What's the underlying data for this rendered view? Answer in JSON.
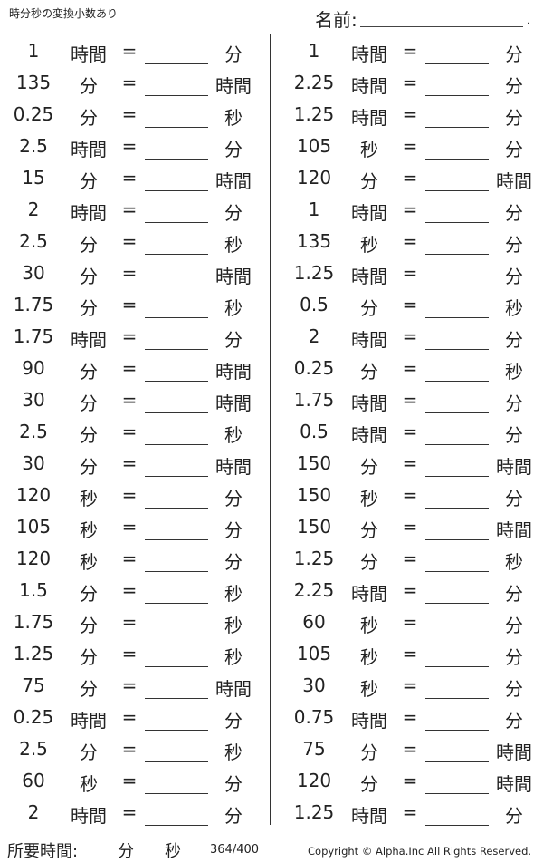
{
  "header": {
    "title": "時分秒の変換小数あり",
    "name_label": "名前:",
    "name_dot": "."
  },
  "equals": "=",
  "left": [
    [
      "1",
      "時間",
      "分"
    ],
    [
      "135",
      "分",
      "時間"
    ],
    [
      "0.25",
      "分",
      "秒"
    ],
    [
      "2.5",
      "時間",
      "分"
    ],
    [
      "15",
      "分",
      "時間"
    ],
    [
      "2",
      "時間",
      "分"
    ],
    [
      "2.5",
      "分",
      "秒"
    ],
    [
      "30",
      "分",
      "時間"
    ],
    [
      "1.75",
      "分",
      "秒"
    ],
    [
      "1.75",
      "時間",
      "分"
    ],
    [
      "90",
      "分",
      "時間"
    ],
    [
      "30",
      "分",
      "時間"
    ],
    [
      "2.5",
      "分",
      "秒"
    ],
    [
      "30",
      "分",
      "時間"
    ],
    [
      "120",
      "秒",
      "分"
    ],
    [
      "105",
      "秒",
      "分"
    ],
    [
      "120",
      "秒",
      "分"
    ],
    [
      "1.5",
      "分",
      "秒"
    ],
    [
      "1.75",
      "分",
      "秒"
    ],
    [
      "1.25",
      "分",
      "秒"
    ],
    [
      "75",
      "分",
      "時間"
    ],
    [
      "0.25",
      "時間",
      "分"
    ],
    [
      "2.5",
      "分",
      "秒"
    ],
    [
      "60",
      "秒",
      "分"
    ],
    [
      "2",
      "時間",
      "分"
    ]
  ],
  "right": [
    [
      "1",
      "時間",
      "分"
    ],
    [
      "2.25",
      "時間",
      "分"
    ],
    [
      "1.25",
      "時間",
      "分"
    ],
    [
      "105",
      "秒",
      "分"
    ],
    [
      "120",
      "分",
      "時間"
    ],
    [
      "1",
      "時間",
      "分"
    ],
    [
      "135",
      "秒",
      "分"
    ],
    [
      "1.25",
      "時間",
      "分"
    ],
    [
      "0.5",
      "分",
      "秒"
    ],
    [
      "2",
      "時間",
      "分"
    ],
    [
      "0.25",
      "分",
      "秒"
    ],
    [
      "1.75",
      "時間",
      "分"
    ],
    [
      "0.5",
      "時間",
      "分"
    ],
    [
      "150",
      "分",
      "時間"
    ],
    [
      "150",
      "秒",
      "分"
    ],
    [
      "150",
      "分",
      "時間"
    ],
    [
      "1.25",
      "分",
      "秒"
    ],
    [
      "2.25",
      "時間",
      "分"
    ],
    [
      "60",
      "秒",
      "分"
    ],
    [
      "105",
      "秒",
      "分"
    ],
    [
      "30",
      "秒",
      "分"
    ],
    [
      "0.75",
      "時間",
      "分"
    ],
    [
      "75",
      "分",
      "時間"
    ],
    [
      "120",
      "分",
      "時間"
    ],
    [
      "1.25",
      "時間",
      "分"
    ]
  ],
  "footer": {
    "time_label": "所要時間:",
    "min": "分",
    "sec": "秒",
    "page": "364/400",
    "copyright": "Copyright © Alpha.Inc All Rights Reserved."
  }
}
